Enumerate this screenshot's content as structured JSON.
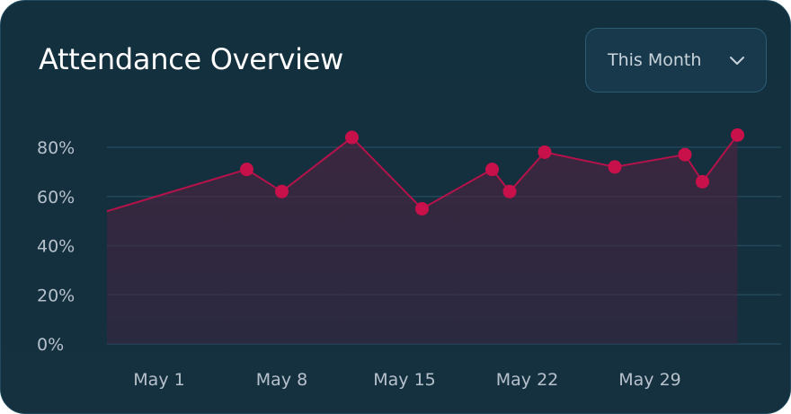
{
  "header": {
    "title": "Attendance Overview",
    "range_label": "This Month"
  },
  "icons": {
    "range_chevron": "chevron-down-icon"
  },
  "colors": {
    "line": "#b5124a",
    "point": "#c8104a",
    "grid": "#22485a",
    "background": "#13303f"
  },
  "chart_data": {
    "type": "line",
    "title": "Attendance Overview",
    "xlabel": "",
    "ylabel": "",
    "y_ticks": [
      "0%",
      "20%",
      "40%",
      "60%",
      "80%"
    ],
    "x_ticks": [
      "May 1",
      "May 8",
      "May 15",
      "May 22",
      "May 29"
    ],
    "ylim": [
      0,
      90
    ],
    "grid": true,
    "legend": "none",
    "series": [
      {
        "x": [
          "Apr 28",
          "May 6",
          "May 8",
          "May 12",
          "May 16",
          "May 20",
          "May 21",
          "May 23",
          "May 27",
          "May 31",
          "Jun 1",
          "Jun 3"
        ],
        "values": [
          54,
          71,
          62,
          84,
          55,
          71,
          62,
          78,
          72,
          77,
          66,
          85
        ],
        "markers": [
          false,
          true,
          true,
          true,
          true,
          true,
          true,
          true,
          true,
          true,
          true,
          true
        ]
      }
    ]
  }
}
